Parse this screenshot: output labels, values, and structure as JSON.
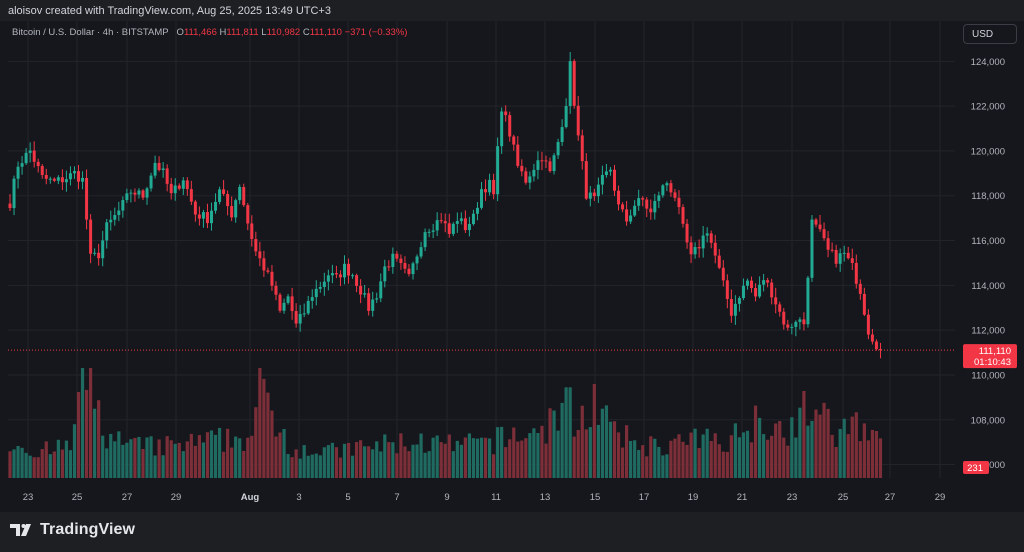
{
  "attribution": "aloisov created with TradingView.com, Aug 25, 2025 13:49 UTC+3",
  "legend": {
    "symbol": "Bitcoin / U.S. Dollar · 4h · BITSTAMP",
    "o_label": "O",
    "o_value": "111,466",
    "h_label": "H",
    "h_value": "111,811",
    "l_label": "L",
    "l_value": "110,982",
    "c_label": "C",
    "c_value": "111,110",
    "change": "−371 (−0.33%)"
  },
  "currency_button": "USD",
  "brand": "TradingView",
  "badges": {
    "last_price": "111,110",
    "countdown": "01:10:43",
    "volume": "231"
  },
  "colors": {
    "up": "#22ab94",
    "down": "#f23645",
    "up_volume": "#1f6b61",
    "down_volume": "#7c2f38",
    "background": "#16171c",
    "grid": "#22242b"
  },
  "chart_data": {
    "type": "candlestick",
    "title": "Bitcoin / U.S. Dollar · 4h · BITSTAMP",
    "interval": "4h",
    "ylim": [
      105400,
      125800
    ],
    "y_ticks": [
      "106,000",
      "108,000",
      "110,000",
      "112,000",
      "114,000",
      "116,000",
      "118,000",
      "120,000",
      "122,000",
      "124,000"
    ],
    "x_tick_labels": [
      "23",
      "25",
      "27",
      "29",
      "Aug",
      "3",
      "5",
      "7",
      "9",
      "11",
      "13",
      "15",
      "17",
      "19",
      "21",
      "23",
      "25",
      "27",
      "29"
    ],
    "last_price": 111110,
    "grid": true,
    "price_path": [
      [
        0,
        117700
      ],
      [
        2,
        119400
      ],
      [
        5,
        120000
      ],
      [
        8,
        118800
      ],
      [
        11,
        118600
      ],
      [
        14,
        118800
      ],
      [
        16,
        119000
      ],
      [
        18,
        118700
      ],
      [
        20,
        115200
      ],
      [
        22,
        115400
      ],
      [
        24,
        116600
      ],
      [
        27,
        117300
      ],
      [
        30,
        118200
      ],
      [
        33,
        118000
      ],
      [
        36,
        119500
      ],
      [
        38,
        119000
      ],
      [
        40,
        118000
      ],
      [
        43,
        118800
      ],
      [
        46,
        117200
      ],
      [
        49,
        117000
      ],
      [
        52,
        118200
      ],
      [
        55,
        117200
      ],
      [
        57,
        118500
      ],
      [
        59,
        116800
      ],
      [
        61,
        115500
      ],
      [
        63,
        114800
      ],
      [
        65,
        114000
      ],
      [
        67,
        112800
      ],
      [
        69,
        113500
      ],
      [
        71,
        112200
      ],
      [
        73,
        112800
      ],
      [
        75,
        113600
      ],
      [
        77,
        114000
      ],
      [
        79,
        114500
      ],
      [
        81,
        114300
      ],
      [
        83,
        114800
      ],
      [
        85,
        114500
      ],
      [
        87,
        113800
      ],
      [
        89,
        113000
      ],
      [
        91,
        113600
      ],
      [
        93,
        114800
      ],
      [
        95,
        115200
      ],
      [
        97,
        114800
      ],
      [
        99,
        114300
      ],
      [
        101,
        115400
      ],
      [
        103,
        116500
      ],
      [
        105,
        116700
      ],
      [
        107,
        117000
      ],
      [
        109,
        116300
      ],
      [
        111,
        117000
      ],
      [
        113,
        116600
      ],
      [
        115,
        117000
      ],
      [
        117,
        118300
      ],
      [
        119,
        118500
      ],
      [
        120,
        118000
      ],
      [
        122,
        122000
      ],
      [
        124,
        120800
      ],
      [
        126,
        119300
      ],
      [
        128,
        118700
      ],
      [
        130,
        119300
      ],
      [
        132,
        119800
      ],
      [
        134,
        119000
      ],
      [
        136,
        120400
      ],
      [
        138,
        122200
      ],
      [
        139,
        123800
      ],
      [
        141,
        120600
      ],
      [
        143,
        118100
      ],
      [
        145,
        117800
      ],
      [
        147,
        118700
      ],
      [
        149,
        119200
      ],
      [
        151,
        117500
      ],
      [
        153,
        116900
      ],
      [
        155,
        117600
      ],
      [
        157,
        117800
      ],
      [
        159,
        117200
      ],
      [
        161,
        118100
      ],
      [
        163,
        118600
      ],
      [
        165,
        118000
      ],
      [
        167,
        116500
      ],
      [
        169,
        115200
      ],
      [
        171,
        115800
      ],
      [
        173,
        116500
      ],
      [
        175,
        115300
      ],
      [
        177,
        114000
      ],
      [
        179,
        112800
      ],
      [
        181,
        113600
      ],
      [
        183,
        114200
      ],
      [
        185,
        113500
      ],
      [
        187,
        114300
      ],
      [
        189,
        113700
      ],
      [
        191,
        112800
      ],
      [
        193,
        112000
      ],
      [
        195,
        112500
      ],
      [
        197,
        112300
      ],
      [
        199,
        116800
      ],
      [
        201,
        116300
      ],
      [
        203,
        115500
      ],
      [
        205,
        115200
      ],
      [
        207,
        115400
      ],
      [
        209,
        114800
      ],
      [
        211,
        113800
      ],
      [
        213,
        112000
      ],
      [
        215,
        111400
      ],
      [
        216,
        111110
      ]
    ],
    "volume_path": [
      [
        0,
        0.35
      ],
      [
        8,
        0.25
      ],
      [
        15,
        0.3
      ],
      [
        18,
        0.95
      ],
      [
        21,
        0.75
      ],
      [
        24,
        0.4
      ],
      [
        30,
        0.3
      ],
      [
        40,
        0.3
      ],
      [
        50,
        0.35
      ],
      [
        60,
        0.4
      ],
      [
        62,
        0.85
      ],
      [
        66,
        0.55
      ],
      [
        70,
        0.3
      ],
      [
        80,
        0.25
      ],
      [
        90,
        0.3
      ],
      [
        100,
        0.35
      ],
      [
        110,
        0.3
      ],
      [
        120,
        0.35
      ],
      [
        125,
        0.4
      ],
      [
        132,
        0.45
      ],
      [
        138,
        0.7
      ],
      [
        141,
        0.55
      ],
      [
        145,
        0.75
      ],
      [
        150,
        0.4
      ],
      [
        160,
        0.3
      ],
      [
        170,
        0.35
      ],
      [
        180,
        0.4
      ],
      [
        186,
        0.6
      ],
      [
        192,
        0.45
      ],
      [
        199,
        0.7
      ],
      [
        205,
        0.4
      ],
      [
        211,
        0.55
      ],
      [
        214,
        0.45
      ],
      [
        216,
        0.3
      ]
    ],
    "series": [
      {
        "name": "Volume",
        "last": 231
      }
    ]
  }
}
